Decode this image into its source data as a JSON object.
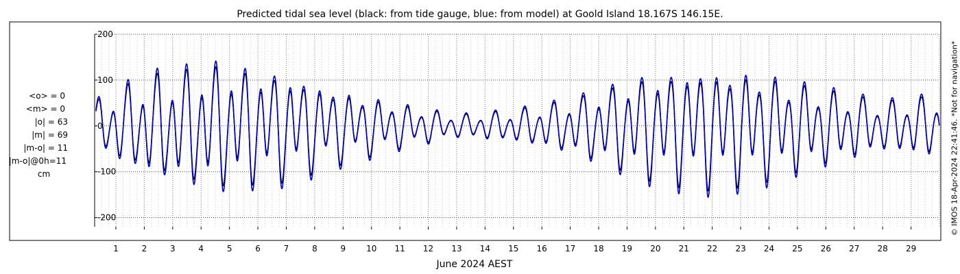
{
  "chart_data": {
    "type": "line",
    "title": "Predicted tidal sea level (black: from tide gauge, blue: from model) at Goold Island 18.167S 146.15E.",
    "xlabel": "June 2024 AEST",
    "ylabel": "",
    "xlim": [
      0.3,
      30.0
    ],
    "ylim": [
      -220,
      200
    ],
    "x_ticks": [
      1,
      2,
      3,
      4,
      5,
      6,
      7,
      8,
      9,
      10,
      11,
      12,
      13,
      14,
      15,
      16,
      17,
      18,
      19,
      20,
      21,
      22,
      23,
      24,
      25,
      26,
      27,
      28,
      29
    ],
    "x_tick_labels": [
      "1",
      "2",
      "3",
      "4",
      "5",
      "6",
      "7",
      "8",
      "9",
      "10",
      "11",
      "12",
      "13",
      "14",
      "15",
      "16",
      "17",
      "18",
      "19",
      "20",
      "21",
      "22",
      "23",
      "24",
      "25",
      "26",
      "27",
      "28",
      "29"
    ],
    "y_ticks": [
      200,
      100,
      0,
      -100,
      -200
    ],
    "y_tick_labels": [
      "200",
      "100",
      "0",
      "-100",
      "-200"
    ],
    "grid": true,
    "series": [
      {
        "label": "black: from tide gauge",
        "color": "#000000",
        "amplitude_scale": 0.91,
        "envelope_days": [
          0.3,
          2,
          4.5,
          7,
          9,
          11,
          13,
          15,
          17,
          19.5,
          21.5,
          23.5,
          26,
          28,
          30
        ],
        "envelope_cm": [
          55,
          110,
          140,
          120,
          80,
          50,
          25,
          35,
          60,
          115,
          135,
          125,
          85,
          55,
          70
        ]
      },
      {
        "label": "blue: from model",
        "color": "#0000cc",
        "amplitude_scale": 1.0,
        "envelope_days": [
          0.3,
          2,
          4.5,
          7,
          9,
          11,
          13,
          15,
          17,
          19.5,
          21.5,
          23.5,
          26,
          28,
          30
        ],
        "envelope_cm": [
          55,
          110,
          140,
          120,
          80,
          50,
          25,
          35,
          60,
          115,
          135,
          125,
          85,
          55,
          70
        ]
      }
    ]
  },
  "stats": {
    "lines": [
      "<o> = 0",
      "<m> = 0",
      "|o| = 63",
      "|m| = 69",
      "|m-o| = 11",
      "|m-o|@0h=11",
      "cm"
    ]
  },
  "credit": "© IMOS 18-Apr-2024 22:41:46. *Not for navigation*",
  "colors": {
    "gauge": "#000000",
    "model": "#0000cc",
    "grid": "#666666"
  }
}
